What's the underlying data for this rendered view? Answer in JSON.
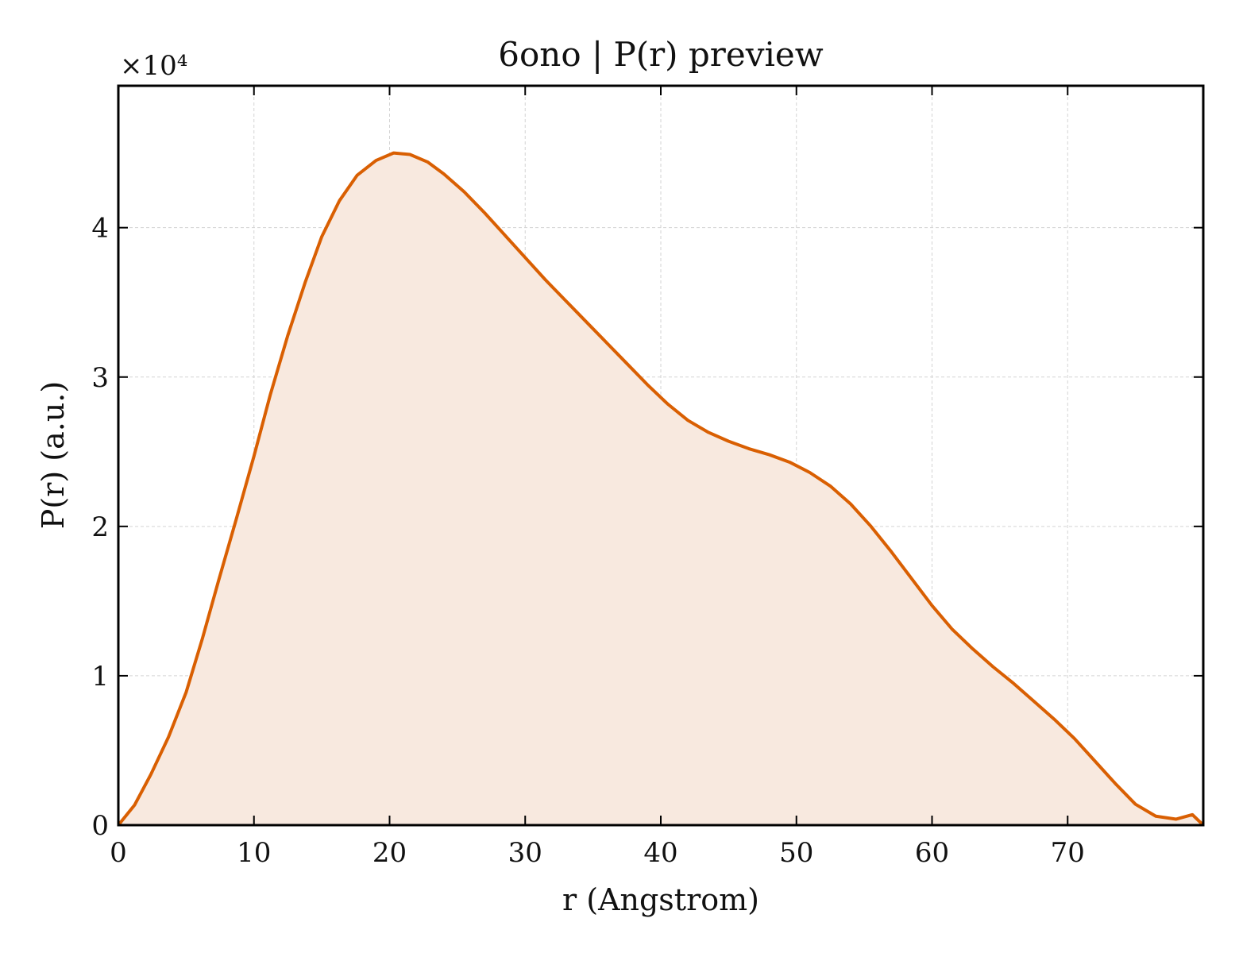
{
  "chart_data": {
    "type": "area",
    "title": "6ono | P(r) preview",
    "xlabel": "r (Angstrom)",
    "ylabel": "P(r) (a.u.)",
    "y_multiplier": "×10⁴",
    "xlim": [
      0,
      80
    ],
    "ylim": [
      0,
      49500
    ],
    "grid": true,
    "legend": "none",
    "x_ticks": [
      0,
      10,
      20,
      30,
      40,
      50,
      60,
      70
    ],
    "x_tick_labels": [
      "0",
      "10",
      "20",
      "30",
      "40",
      "50",
      "60",
      "70"
    ],
    "y_ticks": [
      0,
      10000,
      20000,
      30000,
      40000
    ],
    "y_tick_labels": [
      "0",
      "1",
      "2",
      "3",
      "4"
    ],
    "colors": {
      "line": "#d95f02",
      "fill": "#f8e9df"
    },
    "series": [
      {
        "x": [
          0,
          1.2,
          2.4,
          3.7,
          5,
          6.2,
          7.4,
          8.7,
          10,
          11.2,
          12.5,
          13.8,
          15,
          16.3,
          17.6,
          19,
          20.3,
          21.5,
          22.8,
          24,
          25.5,
          27,
          28.5,
          30,
          31.5,
          33,
          34.5,
          36,
          37.5,
          39,
          40.5,
          42,
          43.5,
          45,
          46.5,
          48,
          49.5,
          51,
          52.5,
          54,
          55.5,
          57,
          58.5,
          60,
          61.5,
          63,
          64.5,
          66,
          67.5,
          69,
          70.5,
          72,
          73.5,
          75,
          76.5,
          78,
          79.2,
          80
        ],
        "y": [
          0,
          1350,
          3400,
          5900,
          8900,
          12500,
          16400,
          20500,
          24700,
          28800,
          32800,
          36400,
          39400,
          41800,
          43500,
          44500,
          45000,
          44900,
          44400,
          43600,
          42400,
          41000,
          39500,
          38000,
          36500,
          35100,
          33700,
          32300,
          30900,
          29500,
          28200,
          27100,
          26300,
          25700,
          25200,
          24800,
          24300,
          23600,
          22700,
          21500,
          20000,
          18300,
          16500,
          14700,
          13100,
          11800,
          10600,
          9500,
          8300,
          7100,
          5800,
          4300,
          2800,
          1400,
          600,
          400,
          700,
          0
        ]
      }
    ]
  }
}
